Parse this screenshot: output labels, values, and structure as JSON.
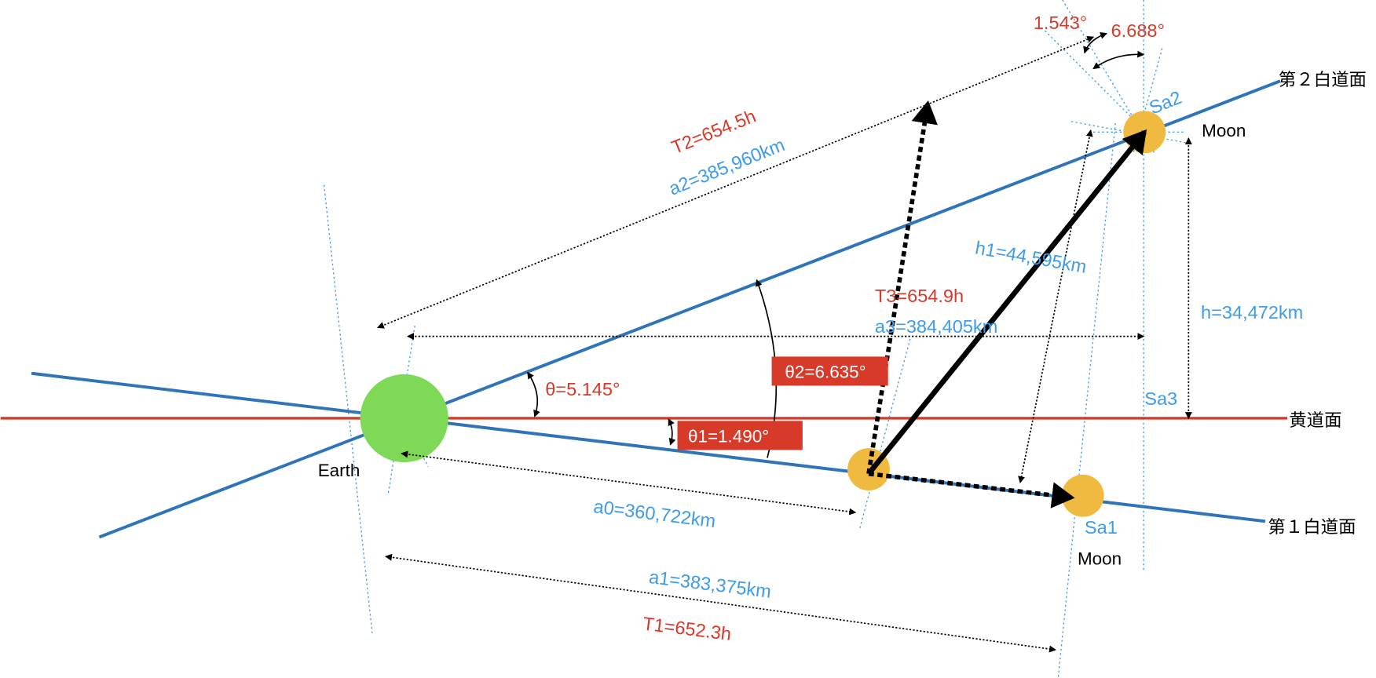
{
  "planes": {
    "ecliptic": "黄道面",
    "orbit1": "第１白道面",
    "orbit2": "第２白道面"
  },
  "bodies": {
    "earth": "Earth",
    "moon1": "Moon",
    "moon2": "Moon",
    "sa1": "Sa1",
    "sa2": "Sa2",
    "sa3": "Sa3"
  },
  "labels": {
    "t2": "T2=654.5h",
    "a2": "a2=385,960km",
    "t3": "T3=654.9h",
    "a3": "a3=384,405km",
    "h1": "h1=44,595km",
    "h": "h=34,472km",
    "theta": "θ=5.145°",
    "theta2": "θ2=6.635°",
    "theta1": "θ1=1.490°",
    "a0": "a0=360,722km",
    "a1": "a1=383,375km",
    "t1": "T1=652.3h",
    "angle_small": "1.543°",
    "angle_large": "6.688°"
  },
  "colors": {
    "ecliptic": "#d83a2a",
    "orbit": "#2f74b8",
    "earth": "#7ed957",
    "moon": "#f0b93f",
    "label_blue": "#3d9be9",
    "label_red": "#d83a2a"
  }
}
